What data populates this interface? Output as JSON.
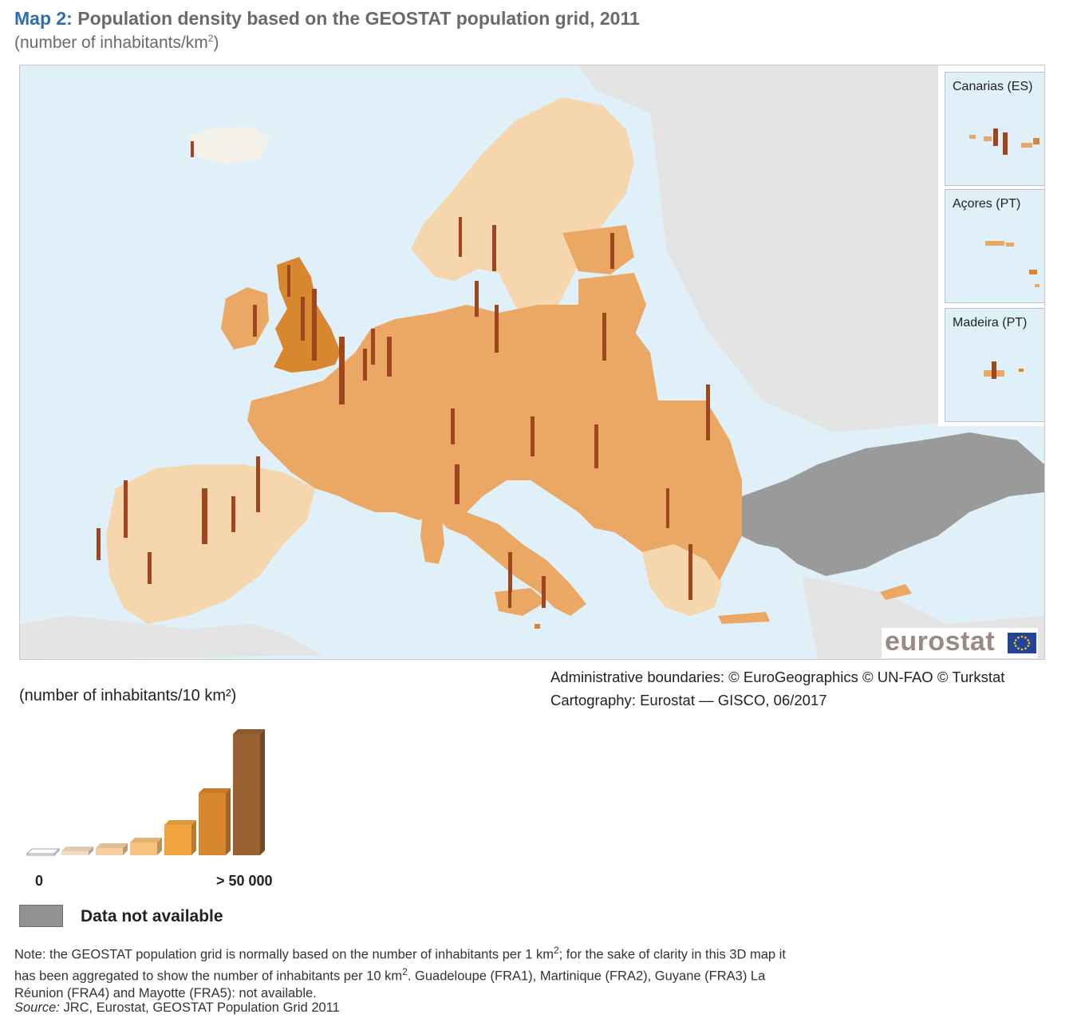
{
  "header": {
    "map_label": "Map 2:",
    "title": "Population density based on the GEOSTAT population grid, 2011",
    "subtitle_text": "(number of inhabitants/km",
    "subtitle_sup": "2",
    "subtitle_end": ")"
  },
  "insets": [
    {
      "label": "Canarias (ES)"
    },
    {
      "label": "Açores (PT)"
    },
    {
      "label": "Madeira (PT)"
    }
  ],
  "logo": {
    "text": "eurostat"
  },
  "credits": {
    "line1": "Administrative boundaries: © EuroGeographics © UN-FAO © Turkstat",
    "line2": "Cartography: Eurostat — GISCO, 06/2017"
  },
  "legend": {
    "unit": "(number of inhabitants/10 km²)",
    "min_label": "0",
    "max_label": "> 50 000",
    "classes": [
      {
        "color": "#ffffff"
      },
      {
        "color": "#f3dcc4"
      },
      {
        "color": "#f6cfa2"
      },
      {
        "color": "#f8c27f"
      },
      {
        "color": "#f1a43f"
      },
      {
        "color": "#d8862f"
      },
      {
        "color": "#9a6133"
      }
    ],
    "na_label": "Data not available",
    "na_color": "#919191"
  },
  "note": {
    "part1": "Note: the GEOSTAT population grid is normally based on the number of inhabitants per 1 km",
    "sup1": "2",
    "part2": "; for the sake of clarity in this 3D map it has been aggregated to show the number of inhabitants per 10 km",
    "sup2": "2",
    "part3": ". Guadeloupe (FRA1), Martinique (FRA2), Guyane (FRA3) La Réunion (FRA4) and Mayotte (FRA5): not available."
  },
  "source": {
    "label": "Source:",
    "text": " JRC, Eurostat, GEOSTAT Population Grid 2011"
  },
  "colors": {
    "sea": "#dff0f8",
    "non_covered_land": "#e4e4e4",
    "turkey": "#9a9a9a",
    "land_low": "#f6d6ad",
    "land_mid": "#eba865",
    "land_high": "#d8862f",
    "spike": "#a0461e"
  }
}
